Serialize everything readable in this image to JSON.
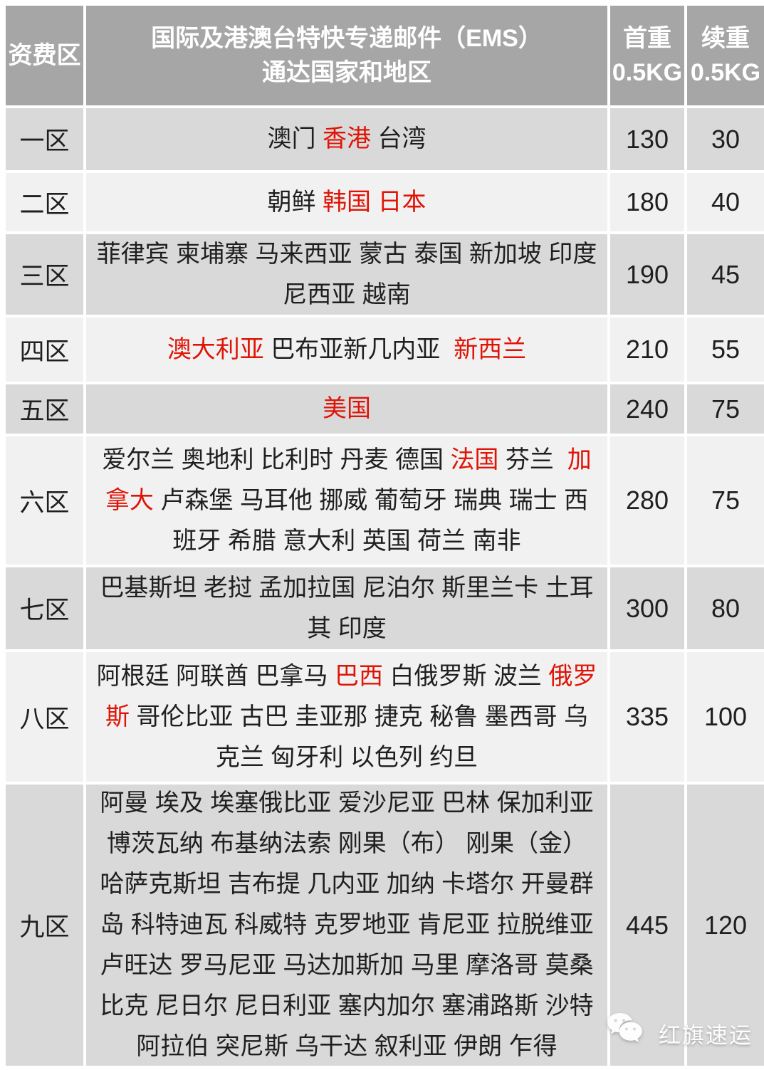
{
  "header": {
    "col_zone": "资费区",
    "col_destinations_line1": "国际及港澳台特快专递邮件（EMS）",
    "col_destinations_line2": "通达国家和地区",
    "col_first_weight": "首重",
    "col_first_weight_sub": "0.5KG",
    "col_additional_weight": "续重",
    "col_additional_weight_sub": "0.5KG"
  },
  "rows": [
    {
      "zone": "一区",
      "destinations": [
        {
          "t": "澳门 ",
          "red": false
        },
        {
          "t": "香港",
          "red": true
        },
        {
          "t": " 台湾",
          "red": false
        }
      ],
      "first_weight": "130",
      "additional_weight": "30"
    },
    {
      "zone": "二区",
      "destinations": [
        {
          "t": "朝鲜 ",
          "red": false
        },
        {
          "t": "韩国 日本",
          "red": true
        }
      ],
      "first_weight": "180",
      "additional_weight": "40"
    },
    {
      "zone": "三区",
      "destinations": [
        {
          "t": "菲律宾 柬埔寨 马来西亚 蒙古 泰国 新加坡 印度尼西亚 越南",
          "red": false
        }
      ],
      "first_weight": "190",
      "additional_weight": "45"
    },
    {
      "zone": "四区",
      "destinations": [
        {
          "t": "澳大利亚",
          "red": true
        },
        {
          "t": " 巴布亚新几内亚 ",
          "red": false
        },
        {
          "t": " 新西兰",
          "red": true
        }
      ],
      "first_weight": "210",
      "additional_weight": "55"
    },
    {
      "zone": "五区",
      "destinations": [
        {
          "t": "美国",
          "red": true
        }
      ],
      "first_weight": "240",
      "additional_weight": "75"
    },
    {
      "zone": "六区",
      "destinations": [
        {
          "t": "爱尔兰 奥地利 比利时 丹麦 德国 ",
          "red": false
        },
        {
          "t": "法国",
          "red": true
        },
        {
          "t": " 芬兰 ",
          "red": false
        },
        {
          "t": " 加拿大",
          "red": true
        },
        {
          "t": " 卢森堡 马耳他 挪威 葡萄牙 瑞典 瑞士 西班牙 希腊 意大利 英国 荷兰 南非",
          "red": false
        }
      ],
      "first_weight": "280",
      "additional_weight": "75"
    },
    {
      "zone": "七区",
      "destinations": [
        {
          "t": "巴基斯坦 老挝 孟加拉国 尼泊尔 斯里兰卡 土耳其 印度",
          "red": false
        }
      ],
      "first_weight": "300",
      "additional_weight": "80"
    },
    {
      "zone": "八区",
      "destinations": [
        {
          "t": "阿根廷 阿联酋 巴拿马 ",
          "red": false
        },
        {
          "t": "巴西",
          "red": true
        },
        {
          "t": " 白俄罗斯 波兰 ",
          "red": false
        },
        {
          "t": "俄罗斯",
          "red": true
        },
        {
          "t": " 哥伦比亚 古巴 圭亚那 捷克 秘鲁 墨西哥 乌克兰 匈牙利 以色列 约旦",
          "red": false
        }
      ],
      "first_weight": "335",
      "additional_weight": "100"
    },
    {
      "zone": "九区",
      "destinations": [
        {
          "t": "阿曼 埃及 埃塞俄比亚 爱沙尼亚 巴林 保加利亚 博茨瓦纳 布基纳法索 刚果（布） 刚果（金） 哈萨克斯坦 吉布提 几内亚 加纳 卡塔尔 开曼群岛 科特迪瓦 科威特 克罗地亚 肯尼亚 拉脱维亚 卢旺达 罗马尼亚 马达加斯加 马里 摩洛哥 莫桑比克 尼日尔 尼日利亚 塞内加尔 塞浦路斯 沙特阿拉伯 突尼斯 乌干达 叙利亚 伊朗 乍得",
          "red": false
        }
      ],
      "first_weight": "445",
      "additional_weight": "120"
    }
  ],
  "watermark": {
    "label": "红旗速运",
    "icon": "wechat-icon"
  },
  "colors": {
    "header_bg": "#a6a6a6",
    "row_dark_bg": "#d9d9d9",
    "row_light_bg": "#f1f1f1",
    "text": "#1f1f1f",
    "highlight_red": "#e01406",
    "header_text": "#ffffff"
  }
}
